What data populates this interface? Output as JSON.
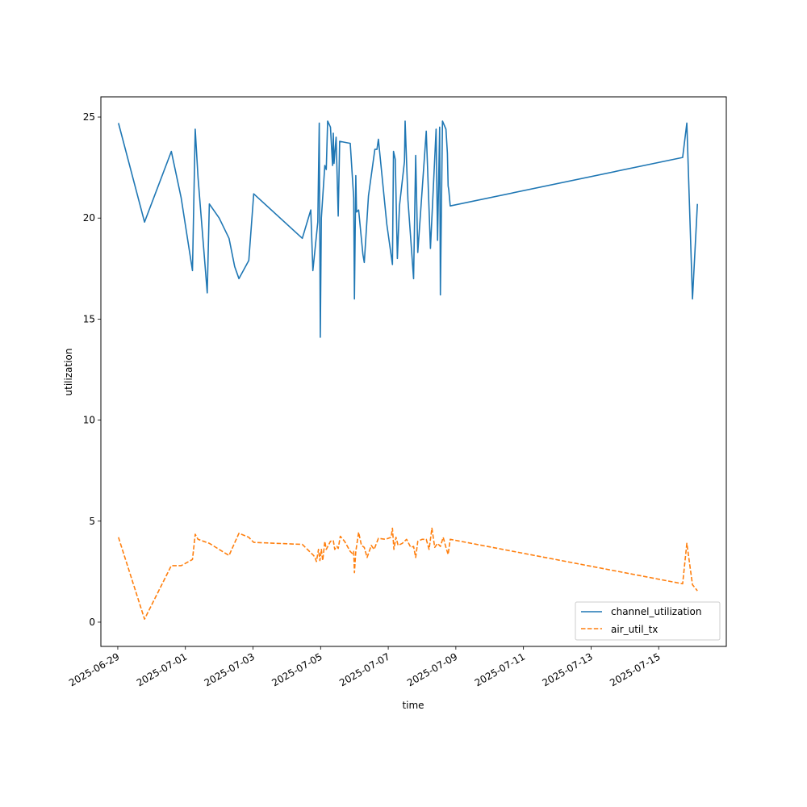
{
  "chart_data": {
    "type": "line",
    "xlabel": "time",
    "ylabel": "utilization",
    "xlim": [
      "2025-06-28T12:00",
      "2025-07-17T00:00"
    ],
    "ylim": [
      -1.2,
      26.0
    ],
    "x_ticks": [
      "2025-06-29",
      "2025-07-01",
      "2025-07-03",
      "2025-07-05",
      "2025-07-07",
      "2025-07-09",
      "2025-07-11",
      "2025-07-13",
      "2025-07-15"
    ],
    "y_ticks": [
      0,
      5,
      10,
      15,
      20,
      25
    ],
    "grid": false,
    "legend_position": "lower right",
    "colors": {
      "channel_utilization": "#1f77b4",
      "air_util_tx": "#ff7f0e"
    },
    "series": [
      {
        "name": "channel_utilization",
        "style": "solid",
        "points": [
          [
            "2025-06-29T00:30",
            24.7
          ],
          [
            "2025-06-29T19:00",
            19.8
          ],
          [
            "2025-06-30T14:00",
            23.3
          ],
          [
            "2025-06-30T21:00",
            21.0
          ],
          [
            "2025-07-01T05:00",
            17.4
          ],
          [
            "2025-07-01T07:00",
            24.4
          ],
          [
            "2025-07-01T09:00",
            22.0
          ],
          [
            "2025-07-01T15:30",
            16.3
          ],
          [
            "2025-07-01T17:00",
            20.7
          ],
          [
            "2025-07-02T00:00",
            20.0
          ],
          [
            "2025-07-02T07:00",
            19.0
          ],
          [
            "2025-07-02T11:00",
            17.6
          ],
          [
            "2025-07-02T14:00",
            17.0
          ],
          [
            "2025-07-02T21:00",
            17.9
          ],
          [
            "2025-07-03T00:30",
            21.2
          ],
          [
            "2025-07-04T11:00",
            19.0
          ],
          [
            "2025-07-04T17:00",
            20.4
          ],
          [
            "2025-07-04T18:30",
            17.4
          ],
          [
            "2025-07-04T22:00",
            19.8
          ],
          [
            "2025-07-04T23:00",
            24.7
          ],
          [
            "2025-07-04T23:45",
            14.1
          ],
          [
            "2025-07-05T00:30",
            20.0
          ],
          [
            "2025-07-05T03:00",
            22.6
          ],
          [
            "2025-07-05T04:00",
            22.4
          ],
          [
            "2025-07-05T05:00",
            24.8
          ],
          [
            "2025-07-05T07:00",
            24.5
          ],
          [
            "2025-07-05T08:30",
            22.6
          ],
          [
            "2025-07-05T09:00",
            24.2
          ],
          [
            "2025-07-05T09:30",
            22.7
          ],
          [
            "2025-07-05T11:00",
            24.0
          ],
          [
            "2025-07-05T12:30",
            20.1
          ],
          [
            "2025-07-05T13:30",
            23.8
          ],
          [
            "2025-07-05T21:00",
            23.7
          ],
          [
            "2025-07-05T23:30",
            21.0
          ],
          [
            "2025-07-06T00:00",
            16.0
          ],
          [
            "2025-07-06T01:00",
            22.1
          ],
          [
            "2025-07-06T01:30",
            20.3
          ],
          [
            "2025-07-06T03:00",
            20.4
          ],
          [
            "2025-07-06T06:00",
            18.2
          ],
          [
            "2025-07-06T07:00",
            17.8
          ],
          [
            "2025-07-06T10:00",
            21.1
          ],
          [
            "2025-07-06T14:30",
            23.4
          ],
          [
            "2025-07-06T16:00",
            23.4
          ],
          [
            "2025-07-06T17:00",
            23.9
          ],
          [
            "2025-07-06T23:00",
            19.7
          ],
          [
            "2025-07-07T03:00",
            17.7
          ],
          [
            "2025-07-07T03:45",
            23.3
          ],
          [
            "2025-07-07T05:00",
            22.9
          ],
          [
            "2025-07-07T06:30",
            18.0
          ],
          [
            "2025-07-07T08:00",
            20.6
          ],
          [
            "2025-07-07T11:30",
            22.8
          ],
          [
            "2025-07-07T12:00",
            24.8
          ],
          [
            "2025-07-07T14:00",
            20.9
          ],
          [
            "2025-07-07T18:00",
            17.0
          ],
          [
            "2025-07-07T19:30",
            23.1
          ],
          [
            "2025-07-07T21:00",
            18.3
          ],
          [
            "2025-07-08T03:00",
            24.3
          ],
          [
            "2025-07-08T06:00",
            18.5
          ],
          [
            "2025-07-08T10:00",
            24.4
          ],
          [
            "2025-07-08T11:00",
            18.9
          ],
          [
            "2025-07-08T12:30",
            24.5
          ],
          [
            "2025-07-08T13:00",
            16.2
          ],
          [
            "2025-07-08T14:30",
            24.8
          ],
          [
            "2025-07-08T17:00",
            24.4
          ],
          [
            "2025-07-08T18:00",
            23.2
          ],
          [
            "2025-07-08T18:30",
            21.6
          ],
          [
            "2025-07-08T19:00",
            21.4
          ],
          [
            "2025-07-08T20:00",
            20.6
          ],
          [
            "2025-07-15T17:00",
            23.0
          ],
          [
            "2025-07-15T20:00",
            24.7
          ],
          [
            "2025-07-16T00:00",
            16.0
          ],
          [
            "2025-07-16T03:30",
            20.7
          ]
        ]
      },
      {
        "name": "air_util_tx",
        "style": "dashed",
        "points": [
          [
            "2025-06-29T00:30",
            4.2
          ],
          [
            "2025-06-29T19:00",
            0.15
          ],
          [
            "2025-06-30T14:00",
            2.8
          ],
          [
            "2025-06-30T21:00",
            2.8
          ],
          [
            "2025-07-01T05:00",
            3.1
          ],
          [
            "2025-07-01T07:00",
            4.35
          ],
          [
            "2025-07-01T09:00",
            4.1
          ],
          [
            "2025-07-01T17:00",
            3.9
          ],
          [
            "2025-07-02T07:00",
            3.3
          ],
          [
            "2025-07-02T14:00",
            4.4
          ],
          [
            "2025-07-02T21:00",
            4.2
          ],
          [
            "2025-07-03T00:30",
            3.95
          ],
          [
            "2025-07-04T11:00",
            3.85
          ],
          [
            "2025-07-04T19:00",
            3.3
          ],
          [
            "2025-07-04T20:00",
            3.2
          ],
          [
            "2025-07-04T21:00",
            3.0
          ],
          [
            "2025-07-04T22:30",
            3.6
          ],
          [
            "2025-07-04T23:30",
            3.05
          ],
          [
            "2025-07-05T00:30",
            3.6
          ],
          [
            "2025-07-05T01:30",
            3.05
          ],
          [
            "2025-07-05T03:00",
            4.0
          ],
          [
            "2025-07-05T04:00",
            3.6
          ],
          [
            "2025-07-05T07:00",
            4.0
          ],
          [
            "2025-07-05T09:00",
            4.05
          ],
          [
            "2025-07-05T10:00",
            3.6
          ],
          [
            "2025-07-05T11:30",
            3.75
          ],
          [
            "2025-07-05T12:30",
            3.65
          ],
          [
            "2025-07-05T14:00",
            4.25
          ],
          [
            "2025-07-05T17:00",
            4.0
          ],
          [
            "2025-07-05T21:00",
            3.5
          ],
          [
            "2025-07-05T22:30",
            3.4
          ],
          [
            "2025-07-05T23:30",
            3.5
          ],
          [
            "2025-07-06T00:00",
            2.45
          ],
          [
            "2025-07-06T01:00",
            3.5
          ],
          [
            "2025-07-06T03:00",
            4.45
          ],
          [
            "2025-07-06T05:00",
            3.8
          ],
          [
            "2025-07-06T07:00",
            3.7
          ],
          [
            "2025-07-06T09:00",
            3.2
          ],
          [
            "2025-07-06T12:00",
            3.8
          ],
          [
            "2025-07-06T14:00",
            3.6
          ],
          [
            "2025-07-06T17:00",
            4.15
          ],
          [
            "2025-07-06T22:00",
            4.1
          ],
          [
            "2025-07-07T02:00",
            4.2
          ],
          [
            "2025-07-07T03:00",
            4.65
          ],
          [
            "2025-07-07T04:00",
            3.6
          ],
          [
            "2025-07-07T05:30",
            4.2
          ],
          [
            "2025-07-07T07:00",
            3.8
          ],
          [
            "2025-07-07T10:00",
            3.9
          ],
          [
            "2025-07-07T13:00",
            4.1
          ],
          [
            "2025-07-07T16:00",
            3.7
          ],
          [
            "2025-07-07T18:00",
            3.75
          ],
          [
            "2025-07-07T19:30",
            3.2
          ],
          [
            "2025-07-07T21:00",
            4.0
          ],
          [
            "2025-07-08T00:00",
            4.1
          ],
          [
            "2025-07-08T03:00",
            4.1
          ],
          [
            "2025-07-08T05:00",
            3.6
          ],
          [
            "2025-07-08T06:00",
            4.1
          ],
          [
            "2025-07-08T07:00",
            4.65
          ],
          [
            "2025-07-08T09:00",
            3.7
          ],
          [
            "2025-07-08T11:00",
            3.9
          ],
          [
            "2025-07-08T13:00",
            3.75
          ],
          [
            "2025-07-08T15:00",
            4.2
          ],
          [
            "2025-07-08T17:00",
            3.7
          ],
          [
            "2025-07-08T18:30",
            3.35
          ],
          [
            "2025-07-08T20:00",
            4.1
          ],
          [
            "2025-07-15T17:00",
            1.9
          ],
          [
            "2025-07-15T20:00",
            3.9
          ],
          [
            "2025-07-16T00:00",
            1.85
          ],
          [
            "2025-07-16T03:30",
            1.55
          ]
        ]
      }
    ]
  }
}
